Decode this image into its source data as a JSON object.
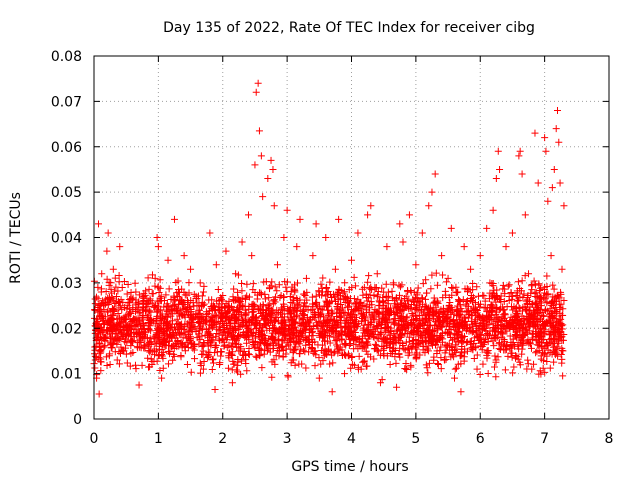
{
  "chart_data": {
    "type": "scatter",
    "title": "Day 135 of 2022, Rate Of TEC Index for receiver cibg",
    "xlabel": "GPS time / hours",
    "ylabel": "ROTI / TECUs",
    "xlim": [
      0,
      8
    ],
    "ylim": [
      0,
      0.08
    ],
    "x_ticks": [
      0,
      1,
      2,
      3,
      4,
      5,
      6,
      7,
      8
    ],
    "x_tick_labels": [
      "0",
      "1",
      "2",
      "3",
      "4",
      "5",
      "6",
      "7",
      "8"
    ],
    "y_ticks": [
      0,
      0.01,
      0.02,
      0.03,
      0.04,
      0.05,
      0.06,
      0.07,
      0.08
    ],
    "y_tick_labels": [
      "0",
      "0.01",
      "0.02",
      "0.03",
      "0.04",
      "0.05",
      "0.06",
      "0.07",
      "0.08"
    ],
    "grid": true,
    "marker": "+",
    "color": "#ff0000",
    "data_extent_hours": [
      0,
      7.3
    ],
    "typical_band": [
      0.008,
      0.03
    ],
    "series": [
      {
        "name": "ROTI",
        "points": [
          [
            0.02,
            0.013
          ],
          [
            0.04,
            0.009
          ],
          [
            0.06,
            0.021
          ],
          [
            0.06,
            0.029
          ],
          [
            0.07,
            0.043
          ],
          [
            0.08,
            0.0055
          ],
          [
            0.1,
            0.018
          ],
          [
            0.12,
            0.032
          ],
          [
            0.15,
            0.025
          ],
          [
            0.2,
            0.037
          ],
          [
            0.22,
            0.041
          ],
          [
            0.25,
            0.012
          ],
          [
            0.3,
            0.033
          ],
          [
            0.35,
            0.027
          ],
          [
            0.4,
            0.038
          ],
          [
            0.45,
            0.015
          ],
          [
            0.5,
            0.022
          ],
          [
            0.55,
            0.02
          ],
          [
            0.6,
            0.017
          ],
          [
            0.65,
            0.028
          ],
          [
            0.7,
            0.0075
          ],
          [
            0.75,
            0.024
          ],
          [
            0.8,
            0.019
          ],
          [
            0.85,
            0.026
          ],
          [
            0.9,
            0.012
          ],
          [
            0.95,
            0.031
          ],
          [
            0.98,
            0.04
          ],
          [
            1.0,
            0.038
          ],
          [
            1.05,
            0.009
          ],
          [
            1.1,
            0.022
          ],
          [
            1.15,
            0.035
          ],
          [
            1.2,
            0.018
          ],
          [
            1.25,
            0.044
          ],
          [
            1.3,
            0.027
          ],
          [
            1.35,
            0.014
          ],
          [
            1.4,
            0.036
          ],
          [
            1.45,
            0.021
          ],
          [
            1.5,
            0.033
          ],
          [
            1.55,
            0.016
          ],
          [
            1.6,
            0.025
          ],
          [
            1.65,
            0.03
          ],
          [
            1.7,
            0.011
          ],
          [
            1.75,
            0.023
          ],
          [
            1.8,
            0.041
          ],
          [
            1.85,
            0.018
          ],
          [
            1.88,
            0.0065
          ],
          [
            1.9,
            0.034
          ],
          [
            1.95,
            0.012
          ],
          [
            2.0,
            0.026
          ],
          [
            2.05,
            0.037
          ],
          [
            2.1,
            0.02
          ],
          [
            2.15,
            0.008
          ],
          [
            2.2,
            0.032
          ],
          [
            2.25,
            0.015
          ],
          [
            2.3,
            0.039
          ],
          [
            2.35,
            0.024
          ],
          [
            2.4,
            0.045
          ],
          [
            2.45,
            0.036
          ],
          [
            2.5,
            0.056
          ],
          [
            2.52,
            0.072
          ],
          [
            2.55,
            0.074
          ],
          [
            2.57,
            0.0635
          ],
          [
            2.6,
            0.058
          ],
          [
            2.62,
            0.049
          ],
          [
            2.65,
            0.021
          ],
          [
            2.7,
            0.053
          ],
          [
            2.75,
            0.057
          ],
          [
            2.78,
            0.055
          ],
          [
            2.8,
            0.047
          ],
          [
            2.85,
            0.034
          ],
          [
            2.9,
            0.019
          ],
          [
            2.95,
            0.04
          ],
          [
            3.0,
            0.046
          ],
          [
            3.05,
            0.027
          ],
          [
            3.1,
            0.013
          ],
          [
            3.15,
            0.038
          ],
          [
            3.2,
            0.044
          ],
          [
            3.25,
            0.022
          ],
          [
            3.3,
            0.031
          ],
          [
            3.35,
            0.017
          ],
          [
            3.4,
            0.036
          ],
          [
            3.45,
            0.043
          ],
          [
            3.5,
            0.009
          ],
          [
            3.55,
            0.028
          ],
          [
            3.6,
            0.04
          ],
          [
            3.65,
            0.021
          ],
          [
            3.7,
            0.006
          ],
          [
            3.75,
            0.033
          ],
          [
            3.8,
            0.044
          ],
          [
            3.85,
            0.019
          ],
          [
            3.9,
            0.027
          ],
          [
            3.95,
            0.014
          ],
          [
            4.0,
            0.035
          ],
          [
            4.05,
            0.024
          ],
          [
            4.1,
            0.041
          ],
          [
            4.15,
            0.011
          ],
          [
            4.2,
            0.029
          ],
          [
            4.25,
            0.045
          ],
          [
            4.3,
            0.047
          ],
          [
            4.35,
            0.018
          ],
          [
            4.4,
            0.032
          ],
          [
            4.45,
            0.008
          ],
          [
            4.5,
            0.025
          ],
          [
            4.55,
            0.038
          ],
          [
            4.6,
            0.012
          ],
          [
            4.65,
            0.03
          ],
          [
            4.7,
            0.007
          ],
          [
            4.75,
            0.043
          ],
          [
            4.8,
            0.039
          ],
          [
            4.85,
            0.021
          ],
          [
            4.9,
            0.045
          ],
          [
            4.95,
            0.016
          ],
          [
            5.0,
            0.034
          ],
          [
            5.05,
            0.026
          ],
          [
            5.1,
            0.041
          ],
          [
            5.15,
            0.019
          ],
          [
            5.2,
            0.047
          ],
          [
            5.25,
            0.05
          ],
          [
            5.3,
            0.054
          ],
          [
            5.35,
            0.012
          ],
          [
            5.4,
            0.036
          ],
          [
            5.45,
            0.023
          ],
          [
            5.5,
            0.031
          ],
          [
            5.55,
            0.042
          ],
          [
            5.6,
            0.009
          ],
          [
            5.65,
            0.028
          ],
          [
            5.7,
            0.006
          ],
          [
            5.75,
            0.038
          ],
          [
            5.8,
            0.017
          ],
          [
            5.85,
            0.033
          ],
          [
            5.9,
            0.024
          ],
          [
            5.95,
            0.011
          ],
          [
            6.0,
            0.036
          ],
          [
            6.05,
            0.021
          ],
          [
            6.1,
            0.042
          ],
          [
            6.15,
            0.03
          ],
          [
            6.2,
            0.046
          ],
          [
            6.25,
            0.053
          ],
          [
            6.28,
            0.059
          ],
          [
            6.3,
            0.055
          ],
          [
            6.35,
            0.019
          ],
          [
            6.4,
            0.038
          ],
          [
            6.45,
            0.027
          ],
          [
            6.5,
            0.041
          ],
          [
            6.55,
            0.014
          ],
          [
            6.6,
            0.058
          ],
          [
            6.62,
            0.059
          ],
          [
            6.65,
            0.054
          ],
          [
            6.7,
            0.045
          ],
          [
            6.75,
            0.032
          ],
          [
            6.8,
            0.011
          ],
          [
            6.85,
            0.063
          ],
          [
            6.9,
            0.052
          ],
          [
            6.95,
            0.025
          ],
          [
            7.0,
            0.062
          ],
          [
            7.02,
            0.059
          ],
          [
            7.05,
            0.048
          ],
          [
            7.1,
            0.036
          ],
          [
            7.12,
            0.051
          ],
          [
            7.15,
            0.055
          ],
          [
            7.18,
            0.064
          ],
          [
            7.2,
            0.068
          ],
          [
            7.22,
            0.061
          ],
          [
            7.24,
            0.052
          ],
          [
            7.25,
            0.018
          ],
          [
            7.27,
            0.033
          ],
          [
            7.28,
            0.0095
          ],
          [
            7.3,
            0.047
          ]
        ]
      }
    ]
  }
}
